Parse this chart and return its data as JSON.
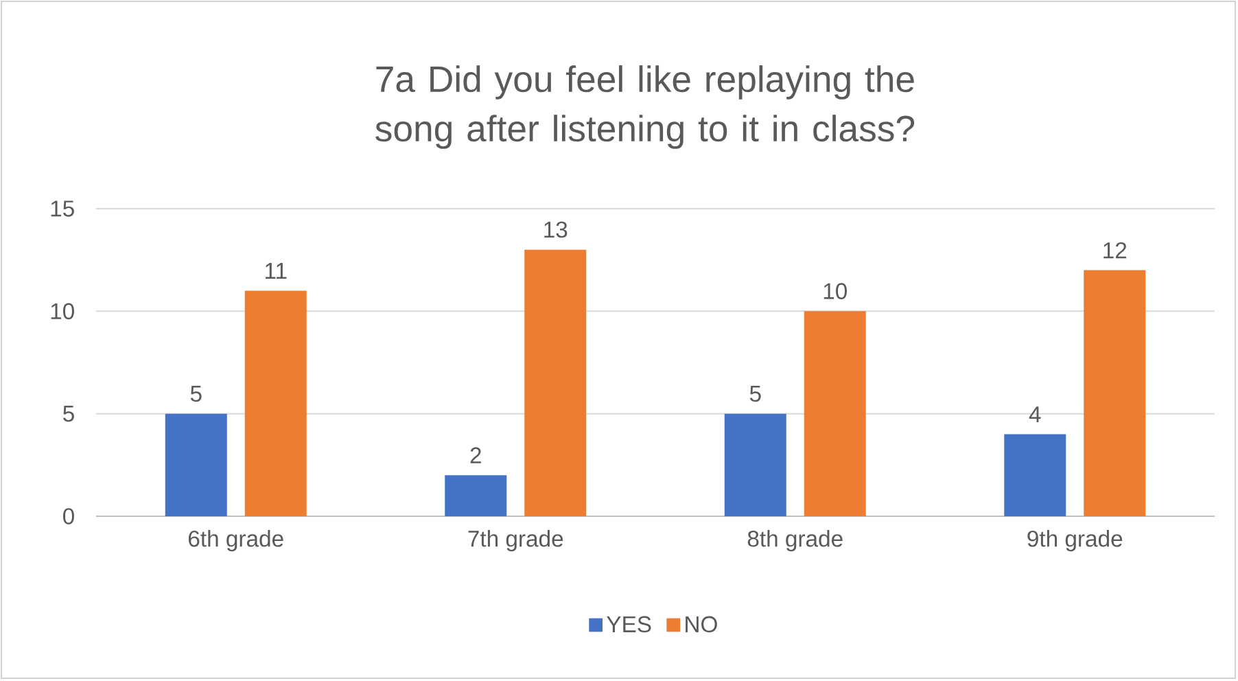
{
  "chart_data": {
    "type": "bar",
    "title": "7a Did you feel like replaying the song after listening to it in class?",
    "categories": [
      "6th grade",
      "7th grade",
      "8th grade",
      "9th grade"
    ],
    "series": [
      {
        "name": "YES",
        "color": "#4472c4",
        "values": [
          5,
          2,
          5,
          4
        ]
      },
      {
        "name": "NO",
        "color": "#ed7d31",
        "values": [
          11,
          13,
          10,
          12
        ]
      }
    ],
    "ylim": [
      0,
      15
    ],
    "yticks": [
      0,
      5,
      10,
      15
    ],
    "grid": "y",
    "legend": "bottom",
    "data_labels": true
  }
}
